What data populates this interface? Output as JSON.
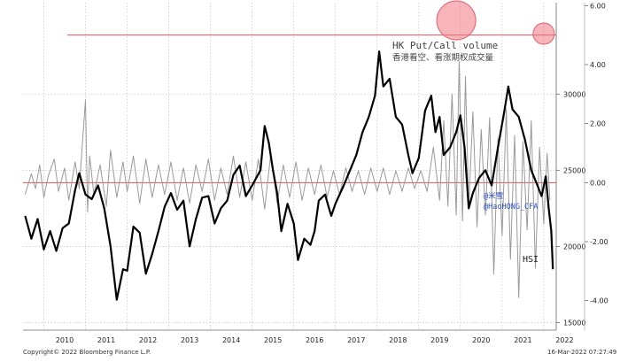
{
  "chart_data": {
    "type": "line",
    "legend": {
      "title": "HK Put/Call volume",
      "subtitle": "香港看空、看涨期权成交量"
    },
    "watermark": [
      "@米雪",
      "@HaoHONG_CFA"
    ],
    "hsi_label": "HSI",
    "x_ticks": [
      "2010",
      "2011",
      "2012",
      "2013",
      "2014",
      "2015",
      "2016",
      "2017",
      "2018",
      "2019",
      "2020",
      "2021",
      "2022"
    ],
    "x_range": [
      2009.5,
      2022.3
    ],
    "right_outer_axis": {
      "ticks": [
        "15000",
        "20000",
        "25000",
        "30000"
      ],
      "range": [
        14500,
        36000
      ]
    },
    "right_inner_axis": {
      "ticks": [
        "-4.00",
        "-2.00",
        "0.00",
        "2.00",
        "4.00",
        "6.00"
      ],
      "range": [
        -5.0,
        6.1
      ]
    },
    "reference_lines": {
      "upper": 5.0,
      "zero": 0.0,
      "color": "#e0505a"
    },
    "highlight_circles": [
      {
        "x": 2019.9,
        "y": 5.5,
        "size": "large"
      },
      {
        "x": 2022.0,
        "y": 5.05,
        "size": "small"
      }
    ],
    "series": [
      {
        "name": "HSI",
        "axis": "outer",
        "color": "#000000",
        "points": [
          [
            2009.55,
            22000
          ],
          [
            2009.7,
            20500
          ],
          [
            2009.85,
            21800
          ],
          [
            2010.0,
            19800
          ],
          [
            2010.15,
            21000
          ],
          [
            2010.3,
            19700
          ],
          [
            2010.45,
            21200
          ],
          [
            2010.6,
            21500
          ],
          [
            2010.75,
            23700
          ],
          [
            2010.85,
            24800
          ],
          [
            2011.0,
            23400
          ],
          [
            2011.15,
            23100
          ],
          [
            2011.3,
            24000
          ],
          [
            2011.45,
            22500
          ],
          [
            2011.6,
            20000
          ],
          [
            2011.75,
            16500
          ],
          [
            2011.9,
            18500
          ],
          [
            2012.0,
            18400
          ],
          [
            2012.15,
            21300
          ],
          [
            2012.3,
            20900
          ],
          [
            2012.45,
            18200
          ],
          [
            2012.6,
            19500
          ],
          [
            2012.75,
            21000
          ],
          [
            2012.9,
            22600
          ],
          [
            2013.05,
            23500
          ],
          [
            2013.2,
            22400
          ],
          [
            2013.35,
            23000
          ],
          [
            2013.5,
            20000
          ],
          [
            2013.65,
            21800
          ],
          [
            2013.8,
            23200
          ],
          [
            2013.95,
            23300
          ],
          [
            2014.1,
            21500
          ],
          [
            2014.25,
            22500
          ],
          [
            2014.4,
            23000
          ],
          [
            2014.55,
            24700
          ],
          [
            2014.7,
            25300
          ],
          [
            2014.85,
            23300
          ],
          [
            2015.0,
            24000
          ],
          [
            2015.2,
            25000
          ],
          [
            2015.3,
            27900
          ],
          [
            2015.4,
            26800
          ],
          [
            2015.5,
            25000
          ],
          [
            2015.6,
            23500
          ],
          [
            2015.7,
            21000
          ],
          [
            2015.85,
            22800
          ],
          [
            2016.0,
            21500
          ],
          [
            2016.1,
            19100
          ],
          [
            2016.25,
            20500
          ],
          [
            2016.4,
            20100
          ],
          [
            2016.5,
            21000
          ],
          [
            2016.6,
            23000
          ],
          [
            2016.75,
            23400
          ],
          [
            2016.9,
            22000
          ],
          [
            2017.0,
            22800
          ],
          [
            2017.2,
            24000
          ],
          [
            2017.35,
            25000
          ],
          [
            2017.5,
            26000
          ],
          [
            2017.65,
            27500
          ],
          [
            2017.8,
            28500
          ],
          [
            2017.95,
            29900
          ],
          [
            2018.05,
            32800
          ],
          [
            2018.15,
            30500
          ],
          [
            2018.3,
            31000
          ],
          [
            2018.45,
            28500
          ],
          [
            2018.6,
            28000
          ],
          [
            2018.75,
            26000
          ],
          [
            2018.85,
            24800
          ],
          [
            2019.0,
            25800
          ],
          [
            2019.15,
            28900
          ],
          [
            2019.3,
            29900
          ],
          [
            2019.4,
            27500
          ],
          [
            2019.5,
            28500
          ],
          [
            2019.6,
            26000
          ],
          [
            2019.75,
            26500
          ],
          [
            2019.9,
            27500
          ],
          [
            2020.0,
            28600
          ],
          [
            2020.1,
            26500
          ],
          [
            2020.2,
            22500
          ],
          [
            2020.3,
            23500
          ],
          [
            2020.45,
            24500
          ],
          [
            2020.6,
            25000
          ],
          [
            2020.75,
            24000
          ],
          [
            2020.9,
            26500
          ],
          [
            2021.05,
            28800
          ],
          [
            2021.15,
            30500
          ],
          [
            2021.25,
            29000
          ],
          [
            2021.4,
            28500
          ],
          [
            2021.55,
            27000
          ],
          [
            2021.7,
            25000
          ],
          [
            2021.85,
            24000
          ],
          [
            2021.95,
            23300
          ],
          [
            2022.05,
            24600
          ],
          [
            2022.12,
            22500
          ],
          [
            2022.18,
            21000
          ],
          [
            2022.22,
            18500
          ]
        ]
      },
      {
        "name": "HK Put/Call volume",
        "axis": "inner",
        "color": "#9a9a9a",
        "points": [
          [
            2009.55,
            -0.4
          ],
          [
            2009.7,
            0.3
          ],
          [
            2009.8,
            -0.2
          ],
          [
            2009.9,
            0.6
          ],
          [
            2010.0,
            -0.5
          ],
          [
            2010.1,
            0.2
          ],
          [
            2010.25,
            0.8
          ],
          [
            2010.35,
            -0.3
          ],
          [
            2010.5,
            0.5
          ],
          [
            2010.6,
            -0.6
          ],
          [
            2010.75,
            0.7
          ],
          [
            2010.85,
            -0.2
          ],
          [
            2011.0,
            2.8
          ],
          [
            2011.05,
            -1.0
          ],
          [
            2011.1,
            0.9
          ],
          [
            2011.2,
            -0.4
          ],
          [
            2011.35,
            0.6
          ],
          [
            2011.5,
            -0.8
          ],
          [
            2011.6,
            1.1
          ],
          [
            2011.75,
            -0.5
          ],
          [
            2011.9,
            0.7
          ],
          [
            2012.0,
            -0.3
          ],
          [
            2012.15,
            0.9
          ],
          [
            2012.3,
            -0.7
          ],
          [
            2012.45,
            0.8
          ],
          [
            2012.6,
            -0.5
          ],
          [
            2012.75,
            0.6
          ],
          [
            2012.9,
            -0.4
          ],
          [
            2013.05,
            0.7
          ],
          [
            2013.2,
            -0.6
          ],
          [
            2013.35,
            0.5
          ],
          [
            2013.5,
            -0.7
          ],
          [
            2013.65,
            0.6
          ],
          [
            2013.8,
            -0.3
          ],
          [
            2013.95,
            0.8
          ],
          [
            2014.1,
            -0.6
          ],
          [
            2014.25,
            0.5
          ],
          [
            2014.4,
            -0.4
          ],
          [
            2014.55,
            0.9
          ],
          [
            2014.7,
            -0.5
          ],
          [
            2014.85,
            0.7
          ],
          [
            2015.0,
            -0.6
          ],
          [
            2015.15,
            0.8
          ],
          [
            2015.3,
            -0.9
          ],
          [
            2015.45,
            1.0
          ],
          [
            2015.6,
            -0.7
          ],
          [
            2015.75,
            0.6
          ],
          [
            2015.9,
            -0.5
          ],
          [
            2016.05,
            0.7
          ],
          [
            2016.2,
            -0.6
          ],
          [
            2016.35,
            0.5
          ],
          [
            2016.5,
            -0.4
          ],
          [
            2016.65,
            0.6
          ],
          [
            2016.8,
            -0.5
          ],
          [
            2016.95,
            0.4
          ],
          [
            2017.1,
            -0.4
          ],
          [
            2017.25,
            0.5
          ],
          [
            2017.4,
            -0.3
          ],
          [
            2017.55,
            0.4
          ],
          [
            2017.7,
            -0.4
          ],
          [
            2017.85,
            0.5
          ],
          [
            2018.0,
            -0.3
          ],
          [
            2018.15,
            0.5
          ],
          [
            2018.3,
            -0.4
          ],
          [
            2018.45,
            0.4
          ],
          [
            2018.6,
            -0.3
          ],
          [
            2018.75,
            0.5
          ],
          [
            2018.9,
            -0.2
          ],
          [
            2019.05,
            0.4
          ],
          [
            2019.2,
            -0.3
          ],
          [
            2019.35,
            1.2
          ],
          [
            2019.5,
            -0.6
          ],
          [
            2019.6,
            2.1
          ],
          [
            2019.7,
            -0.8
          ],
          [
            2019.8,
            3.0
          ],
          [
            2019.9,
            -1.1
          ],
          [
            2019.97,
            4.1
          ],
          [
            2020.05,
            -1.3
          ],
          [
            2020.12,
            3.6
          ],
          [
            2020.2,
            -0.9
          ],
          [
            2020.3,
            2.4
          ],
          [
            2020.4,
            -1.5
          ],
          [
            2020.5,
            1.8
          ],
          [
            2020.6,
            -1.1
          ],
          [
            2020.7,
            2.2
          ],
          [
            2020.8,
            -3.1
          ],
          [
            2020.9,
            1.5
          ],
          [
            2021.0,
            -1.8
          ],
          [
            2021.1,
            2.5
          ],
          [
            2021.2,
            -2.6
          ],
          [
            2021.3,
            1.6
          ],
          [
            2021.4,
            -3.9
          ],
          [
            2021.5,
            1.4
          ],
          [
            2021.6,
            -1.6
          ],
          [
            2021.7,
            2.1
          ],
          [
            2021.8,
            -2.9
          ],
          [
            2021.9,
            1.2
          ],
          [
            2022.0,
            -1.4
          ],
          [
            2022.08,
            1.0
          ],
          [
            2022.15,
            -0.6
          ]
        ]
      }
    ]
  },
  "footer": {
    "copyright": "Copyright© 2022 Bloomberg Finance L.P.",
    "timestamp": "16-Mar-2022 07:27:49"
  }
}
